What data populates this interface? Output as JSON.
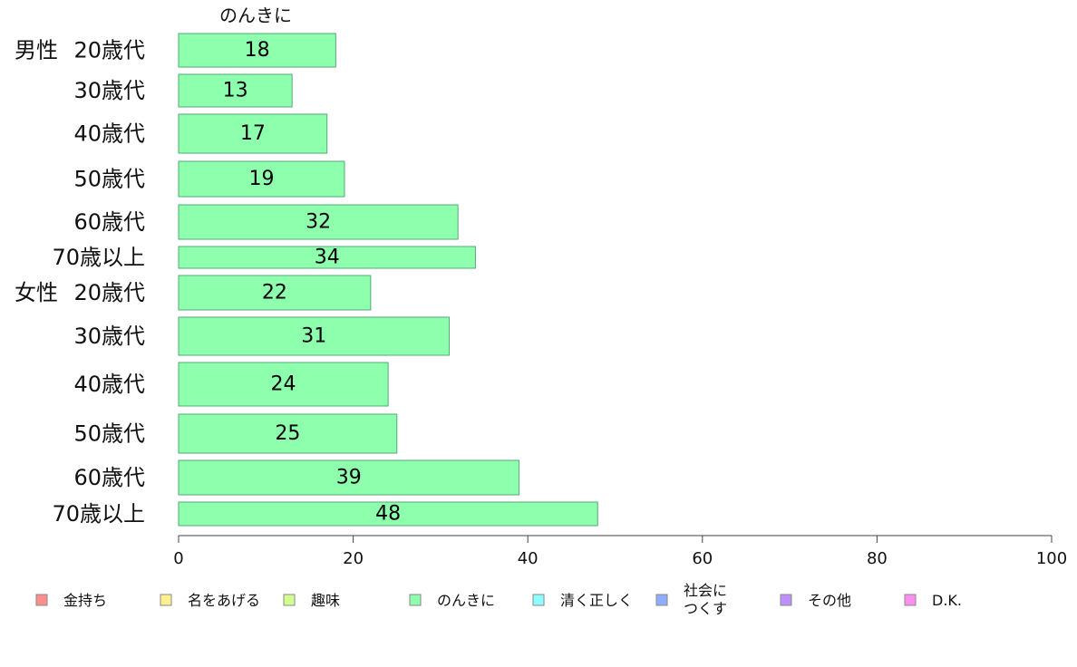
{
  "chart_data": {
    "type": "bar",
    "orientation": "horizontal",
    "series_title": "のんきに",
    "groups": [
      {
        "label": "男性",
        "categories": [
          "20歳代",
          "30歳代",
          "40歳代",
          "50歳代",
          "60歳代",
          "70歳以上"
        ],
        "values": [
          18,
          13,
          17,
          19,
          32,
          34
        ]
      },
      {
        "label": "女性",
        "categories": [
          "20歳代",
          "30歳代",
          "40歳代",
          "50歳代",
          "60歳代",
          "70歳以上"
        ],
        "values": [
          22,
          31,
          24,
          25,
          39,
          48
        ]
      }
    ],
    "bar_color": "#8dffad",
    "xlim": [
      0,
      100
    ],
    "xticks": [
      0,
      20,
      40,
      60,
      80,
      100
    ],
    "grid": false,
    "legend_position": "bottom",
    "legend": [
      {
        "label": "金持ち",
        "color": "#ff8f8f"
      },
      {
        "label": "名をあげる",
        "color": "#ffef8f"
      },
      {
        "label": "趣味",
        "color": "#d2ff8f"
      },
      {
        "label": "のんきに",
        "color": "#8dffad"
      },
      {
        "label": "清く正しく",
        "color": "#8fffff"
      },
      {
        "label": "社会に\nつくす",
        "color": "#8fadff"
      },
      {
        "label": "その他",
        "color": "#c08fff"
      },
      {
        "label": "D.K.",
        "color": "#ff8fef"
      }
    ]
  }
}
